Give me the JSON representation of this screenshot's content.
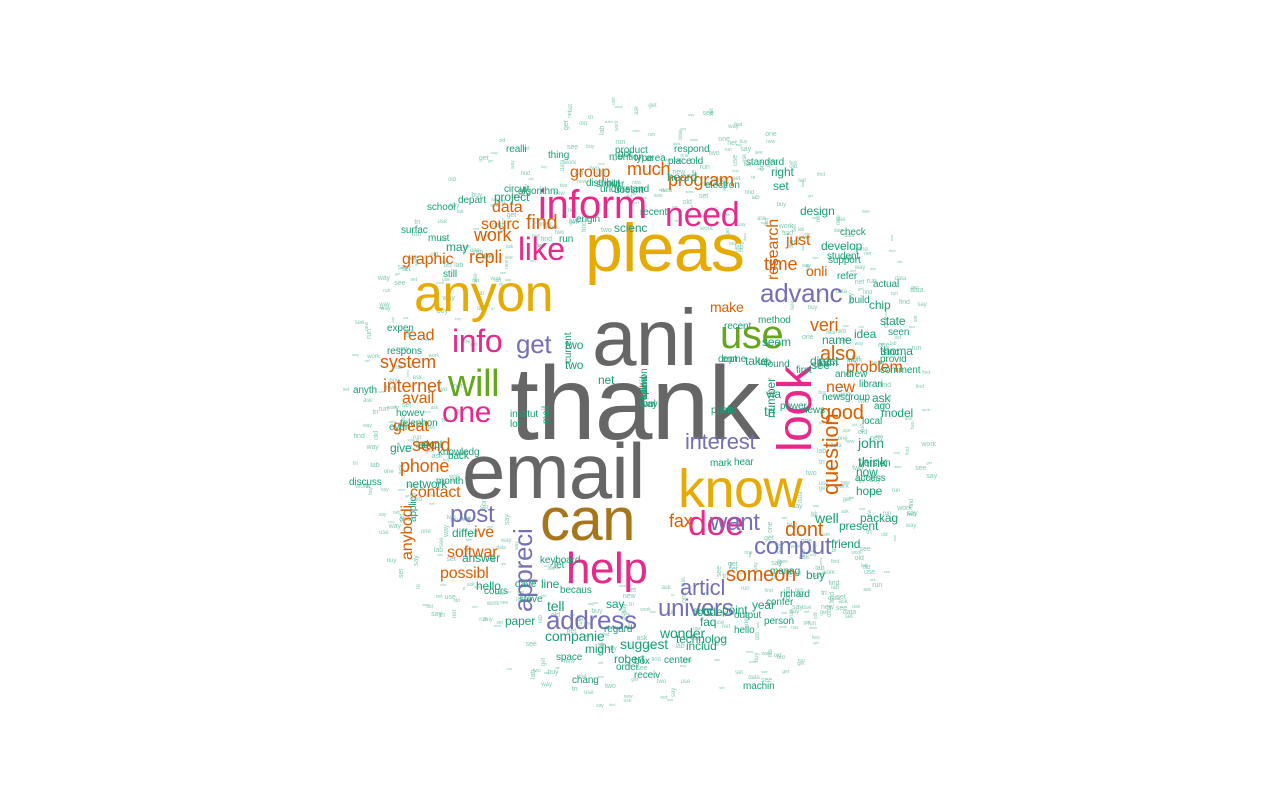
{
  "palette": {
    "gray": "#666666",
    "gold": "#e6ab02",
    "olive": "#a6761d",
    "orange": "#d95f02",
    "pink": "#e7298a",
    "purple": "#7570b3",
    "green": "#66a61e",
    "teal": "#1b9e77"
  },
  "words": [
    {
      "text": "thank",
      "color": "gray",
      "rotated": false
    },
    {
      "text": "ani",
      "color": "gray",
      "rotated": false
    },
    {
      "text": "email",
      "color": "gray",
      "rotated": false
    },
    {
      "text": "pleas",
      "color": "gold",
      "rotated": false
    },
    {
      "text": "can",
      "color": "olive",
      "rotated": false
    },
    {
      "text": "know",
      "color": "gold",
      "rotated": false
    },
    {
      "text": "anyon",
      "color": "gold",
      "rotated": false
    },
    {
      "text": "look",
      "color": "pink",
      "rotated": true
    },
    {
      "text": "help",
      "color": "pink",
      "rotated": false
    },
    {
      "text": "inform",
      "color": "pink",
      "rotated": false
    },
    {
      "text": "need",
      "color": "pink",
      "rotated": false
    },
    {
      "text": "use",
      "color": "green",
      "rotated": false
    },
    {
      "text": "will",
      "color": "green",
      "rotated": false
    },
    {
      "text": "doe",
      "color": "pink",
      "rotated": false
    },
    {
      "text": "like",
      "color": "pink",
      "rotated": false
    },
    {
      "text": "info",
      "color": "pink",
      "rotated": false
    },
    {
      "text": "one",
      "color": "pink",
      "rotated": false
    },
    {
      "text": "address",
      "color": "purple",
      "rotated": false
    },
    {
      "text": "advanc",
      "color": "purple",
      "rotated": false
    },
    {
      "text": "univers",
      "color": "purple",
      "rotated": false
    },
    {
      "text": "comput",
      "color": "purple",
      "rotated": false
    },
    {
      "text": "want",
      "color": "purple",
      "rotated": false
    },
    {
      "text": "get",
      "color": "purple",
      "rotated": false
    },
    {
      "text": "post",
      "color": "purple",
      "rotated": false
    },
    {
      "text": "appreci",
      "color": "purple",
      "rotated": true
    },
    {
      "text": "articl",
      "color": "purple",
      "rotated": false
    },
    {
      "text": "interest",
      "color": "purple",
      "rotated": false
    },
    {
      "text": "question",
      "color": "orange",
      "rotated": true
    },
    {
      "text": "also",
      "color": "orange",
      "rotated": false
    },
    {
      "text": "good",
      "color": "orange",
      "rotated": false
    },
    {
      "text": "dont",
      "color": "orange",
      "rotated": false
    },
    {
      "text": "someon",
      "color": "orange",
      "rotated": false
    },
    {
      "text": "research",
      "color": "orange",
      "rotated": true
    },
    {
      "text": "program",
      "color": "orange",
      "rotated": false
    },
    {
      "text": "much",
      "color": "orange",
      "rotated": false
    },
    {
      "text": "find",
      "color": "orange",
      "rotated": false
    },
    {
      "text": "work",
      "color": "orange",
      "rotated": false
    },
    {
      "text": "repli",
      "color": "orange",
      "rotated": false
    },
    {
      "text": "veri",
      "color": "orange",
      "rotated": false
    },
    {
      "text": "time",
      "color": "orange",
      "rotated": false
    },
    {
      "text": "problem",
      "color": "orange",
      "rotated": false
    },
    {
      "text": "fax",
      "color": "orange",
      "rotated": false
    },
    {
      "text": "phone",
      "color": "orange",
      "rotated": false
    },
    {
      "text": "system",
      "color": "orange",
      "rotated": false
    },
    {
      "text": "internet",
      "color": "orange",
      "rotated": false
    },
    {
      "text": "send",
      "color": "orange",
      "rotated": false
    },
    {
      "text": "read",
      "color": "orange",
      "rotated": false
    },
    {
      "text": "great",
      "color": "orange",
      "rotated": false
    },
    {
      "text": "avail",
      "color": "orange",
      "rotated": false
    },
    {
      "text": "contact",
      "color": "orange",
      "rotated": false
    },
    {
      "text": "data",
      "color": "orange",
      "rotated": false
    },
    {
      "text": "sourc",
      "color": "orange",
      "rotated": false
    },
    {
      "text": "group",
      "color": "orange",
      "rotated": false
    },
    {
      "text": "graphic",
      "color": "orange",
      "rotated": false
    },
    {
      "text": "onli",
      "color": "orange",
      "rotated": false
    },
    {
      "text": "make",
      "color": "orange",
      "rotated": false
    },
    {
      "text": "new",
      "color": "orange",
      "rotated": false
    },
    {
      "text": "just",
      "color": "orange",
      "rotated": false
    },
    {
      "text": "softwar",
      "color": "orange",
      "rotated": false
    },
    {
      "text": "possibl",
      "color": "orange",
      "rotated": false
    },
    {
      "text": "anybodi",
      "color": "orange",
      "rotated": true
    },
    {
      "text": "ive",
      "color": "orange",
      "rotated": false
    },
    {
      "text": "etc",
      "color": "orange",
      "rotated": false
    },
    {
      "text": "give",
      "color": "teal",
      "rotated": false
    },
    {
      "text": "differ",
      "color": "teal",
      "rotated": false
    },
    {
      "text": "answer",
      "color": "teal",
      "rotated": false
    },
    {
      "text": "tell",
      "color": "teal",
      "rotated": false
    },
    {
      "text": "line",
      "color": "teal",
      "rotated": false
    },
    {
      "text": "hello",
      "color": "teal",
      "rotated": false
    },
    {
      "text": "paper",
      "color": "teal",
      "rotated": false
    },
    {
      "text": "companie",
      "color": "teal",
      "rotated": false
    },
    {
      "text": "suggest",
      "color": "teal",
      "rotated": false
    },
    {
      "text": "wonder",
      "color": "teal",
      "rotated": false
    },
    {
      "text": "technolog",
      "color": "teal",
      "rotated": false
    },
    {
      "text": "might",
      "color": "teal",
      "rotated": false
    },
    {
      "text": "robert",
      "color": "teal",
      "rotated": false
    },
    {
      "text": "includ",
      "color": "teal",
      "rotated": false
    },
    {
      "text": "say",
      "color": "teal",
      "rotated": false
    },
    {
      "text": "point",
      "color": "teal",
      "rotated": false
    },
    {
      "text": "faq",
      "color": "teal",
      "rotated": false
    },
    {
      "text": "code",
      "color": "teal",
      "rotated": false
    },
    {
      "text": "year",
      "color": "teal",
      "rotated": false
    },
    {
      "text": "buy",
      "color": "teal",
      "rotated": false
    },
    {
      "text": "well",
      "color": "teal",
      "rotated": false
    },
    {
      "text": "think",
      "color": "teal",
      "rotated": false
    },
    {
      "text": "john",
      "color": "teal",
      "rotated": false
    },
    {
      "text": "ask",
      "color": "teal",
      "rotated": false
    },
    {
      "text": "via",
      "color": "teal",
      "rotated": false
    },
    {
      "text": "tri",
      "color": "teal",
      "rotated": false
    },
    {
      "text": "seem",
      "color": "teal",
      "rotated": false
    },
    {
      "text": "see",
      "color": "teal",
      "rotated": false
    },
    {
      "text": "name",
      "color": "teal",
      "rotated": false
    },
    {
      "text": "idea",
      "color": "teal",
      "rotated": false
    },
    {
      "text": "direct",
      "color": "teal",
      "rotated": false
    },
    {
      "text": "take",
      "color": "teal",
      "rotated": false
    },
    {
      "text": "number",
      "color": "teal",
      "rotated": true
    },
    {
      "text": "net",
      "color": "teal",
      "rotated": false
    },
    {
      "text": "two",
      "color": "teal",
      "rotated": false
    },
    {
      "text": "two",
      "color": "teal",
      "rotated": false
    },
    {
      "text": "may",
      "color": "teal",
      "rotated": false
    },
    {
      "text": "project",
      "color": "teal",
      "rotated": false
    },
    {
      "text": "scienc",
      "color": "teal",
      "rotated": false
    },
    {
      "text": "heard",
      "color": "teal",
      "rotated": false
    },
    {
      "text": "set",
      "color": "teal",
      "rotated": false
    },
    {
      "text": "right",
      "color": "teal",
      "rotated": false
    },
    {
      "text": "design",
      "color": "teal",
      "rotated": false
    },
    {
      "text": "develop",
      "color": "teal",
      "rotated": false
    },
    {
      "text": "network",
      "color": "teal",
      "rotated": false
    },
    {
      "text": "model",
      "color": "teal",
      "rotated": false
    },
    {
      "text": "present",
      "color": "teal",
      "rotated": false
    },
    {
      "text": "packag",
      "color": "teal",
      "rotated": false
    },
    {
      "text": "friend",
      "color": "teal",
      "rotated": false
    },
    {
      "text": "now",
      "color": "teal",
      "rotated": false
    },
    {
      "text": "hope",
      "color": "teal",
      "rotated": false
    },
    {
      "text": "thoma",
      "color": "teal",
      "rotated": false
    },
    {
      "text": "state",
      "color": "teal",
      "rotated": false
    },
    {
      "text": "chip",
      "color": "teal",
      "rotated": false
    },
    {
      "text": "anyth",
      "color": "teal",
      "rotated": false
    },
    {
      "text": "howev",
      "color": "teal",
      "rotated": false
    },
    {
      "text": "expen",
      "color": "teal",
      "rotated": false
    },
    {
      "text": "respons",
      "color": "teal",
      "rotated": false
    },
    {
      "text": "engin",
      "color": "teal",
      "rotated": false
    },
    {
      "text": "realli",
      "color": "teal",
      "rotated": false
    },
    {
      "text": "circuit",
      "color": "teal",
      "rotated": false
    },
    {
      "text": "algorithm",
      "color": "teal",
      "rotated": false
    },
    {
      "text": "product",
      "color": "teal",
      "rotated": false
    },
    {
      "text": "place",
      "color": "teal",
      "rotated": false
    },
    {
      "text": "old",
      "color": "teal",
      "rotated": false
    },
    {
      "text": "electron",
      "color": "teal",
      "rotated": false
    },
    {
      "text": "standard",
      "color": "teal",
      "rotated": false
    },
    {
      "text": "type",
      "color": "teal",
      "rotated": false
    },
    {
      "text": "got",
      "color": "teal",
      "rotated": false
    },
    {
      "text": "area",
      "color": "teal",
      "rotated": false
    },
    {
      "text": "thing",
      "color": "teal",
      "rotated": false
    },
    {
      "text": "depart",
      "color": "teal",
      "rotated": false
    },
    {
      "text": "still",
      "color": "teal",
      "rotated": false
    },
    {
      "text": "surfac",
      "color": "teal",
      "rotated": false
    },
    {
      "text": "must",
      "color": "teal",
      "rotated": false
    },
    {
      "text": "recent",
      "color": "teal",
      "rotated": false
    },
    {
      "text": "run",
      "color": "teal",
      "rotated": false
    },
    {
      "text": "school",
      "color": "teal",
      "rotated": false
    },
    {
      "text": "dave",
      "color": "teal",
      "rotated": false
    },
    {
      "text": "steve",
      "color": "teal",
      "rotated": false
    },
    {
      "text": "keyboard",
      "color": "teal",
      "rotated": false
    },
    {
      "text": "institut",
      "color": "teal",
      "rotated": false
    },
    {
      "text": "lot",
      "color": "teal",
      "rotated": false
    },
    {
      "text": "let",
      "color": "teal",
      "rotated": false
    },
    {
      "text": "sure",
      "color": "teal",
      "rotated": false
    },
    {
      "text": "mark",
      "color": "teal",
      "rotated": false
    },
    {
      "text": "hear",
      "color": "teal",
      "rotated": false
    },
    {
      "text": "access",
      "color": "teal",
      "rotated": false
    },
    {
      "text": "version",
      "color": "teal",
      "rotated": false
    },
    {
      "text": "librari",
      "color": "teal",
      "rotated": false
    },
    {
      "text": "provid",
      "color": "teal",
      "rotated": false
    },
    {
      "text": "comment",
      "color": "teal",
      "rotated": false
    },
    {
      "text": "build",
      "color": "teal",
      "rotated": false
    },
    {
      "text": "support",
      "color": "teal",
      "rotated": false
    },
    {
      "text": "student",
      "color": "teal",
      "rotated": false
    },
    {
      "text": "actual",
      "color": "teal",
      "rotated": false
    },
    {
      "text": "check",
      "color": "teal",
      "rotated": false
    },
    {
      "text": "refer",
      "color": "teal",
      "rotated": false
    },
    {
      "text": "richard",
      "color": "teal",
      "rotated": false
    },
    {
      "text": "chang",
      "color": "teal",
      "rotated": false
    },
    {
      "text": "center",
      "color": "teal",
      "rotated": false
    },
    {
      "text": "machin",
      "color": "teal",
      "rotated": false
    },
    {
      "text": "hello",
      "color": "teal",
      "rotated": false
    },
    {
      "text": "person",
      "color": "teal",
      "rotated": false
    },
    {
      "text": "confer",
      "color": "teal",
      "rotated": false
    },
    {
      "text": "output",
      "color": "teal",
      "rotated": false
    },
    {
      "text": "manag",
      "color": "teal",
      "rotated": false
    },
    {
      "text": "regard",
      "color": "teal",
      "rotated": false
    },
    {
      "text": "becaus",
      "color": "teal",
      "rotated": false
    },
    {
      "text": "cours",
      "color": "teal",
      "rotated": false
    },
    {
      "text": "space",
      "color": "teal",
      "rotated": false
    },
    {
      "text": "order",
      "color": "teal",
      "rotated": false
    },
    {
      "text": "box",
      "color": "teal",
      "rotated": false
    },
    {
      "text": "receiv",
      "color": "teal",
      "rotated": false
    },
    {
      "text": "month",
      "color": "teal",
      "rotated": false
    },
    {
      "text": "discuss",
      "color": "teal",
      "rotated": false
    },
    {
      "text": "telephon",
      "color": "teal",
      "rotated": false
    },
    {
      "text": "even",
      "color": "teal",
      "rotated": false
    },
    {
      "text": "peopl",
      "color": "teal",
      "rotated": false
    },
    {
      "text": "knowledg",
      "color": "teal",
      "rotated": false
    },
    {
      "text": "back",
      "color": "teal",
      "rotated": false
    },
    {
      "text": "similar",
      "color": "teal",
      "rotated": false
    },
    {
      "text": "understand",
      "color": "teal",
      "rotated": false
    },
    {
      "text": "mention",
      "color": "teal",
      "rotated": false
    },
    {
      "text": "respond",
      "color": "teal",
      "rotated": false
    },
    {
      "text": "distribut",
      "color": "teal",
      "rotated": false
    },
    {
      "text": "doesnt",
      "color": "teal",
      "rotated": false
    },
    {
      "text": "recent",
      "color": "teal",
      "rotated": false
    },
    {
      "text": "method",
      "color": "teal",
      "rotated": false
    },
    {
      "text": "newsgroup",
      "color": "teal",
      "rotated": false
    },
    {
      "text": "power",
      "color": "teal",
      "rotated": false
    },
    {
      "text": "local",
      "color": "teal",
      "rotated": false
    },
    {
      "text": "form",
      "color": "teal",
      "rotated": false
    },
    {
      "text": "andrew",
      "color": "teal",
      "rotated": false
    },
    {
      "text": "first",
      "color": "teal",
      "rotated": false
    },
    {
      "text": "come",
      "color": "teal",
      "rotated": false
    },
    {
      "text": "sinc",
      "color": "teal",
      "rotated": false
    },
    {
      "text": "ago",
      "color": "teal",
      "rotated": false
    },
    {
      "text": "seen",
      "color": "teal",
      "rotated": false
    },
    {
      "text": "public",
      "color": "teal",
      "rotated": false
    },
    {
      "text": "dept",
      "color": "teal",
      "rotated": false
    },
    {
      "text": "lab",
      "color": "teal",
      "rotated": false
    },
    {
      "text": "found",
      "color": "teal",
      "rotated": false
    },
    {
      "text": "news",
      "color": "teal",
      "rotated": false
    },
    {
      "text": "applic",
      "color": "teal",
      "rotated": true
    },
    {
      "text": "current",
      "color": "teal",
      "rotated": true
    },
    {
      "text": "mail",
      "color": "teal",
      "rotated": true
    },
    {
      "text": "wait",
      "color": "teal",
      "rotated": true
    },
    {
      "text": "call",
      "color": "orange",
      "rotated": true
    },
    {
      "text": "follow",
      "color": "teal",
      "rotated": true
    },
    {
      "text": "opinion",
      "color": "teal",
      "rotated": true
    },
    {
      "text": "david",
      "color": "teal",
      "rotated": true
    },
    {
      "text": "tool",
      "color": "teal",
      "rotated": false
    },
    {
      "text": "way",
      "color": "teal",
      "rotated": false
    }
  ]
}
